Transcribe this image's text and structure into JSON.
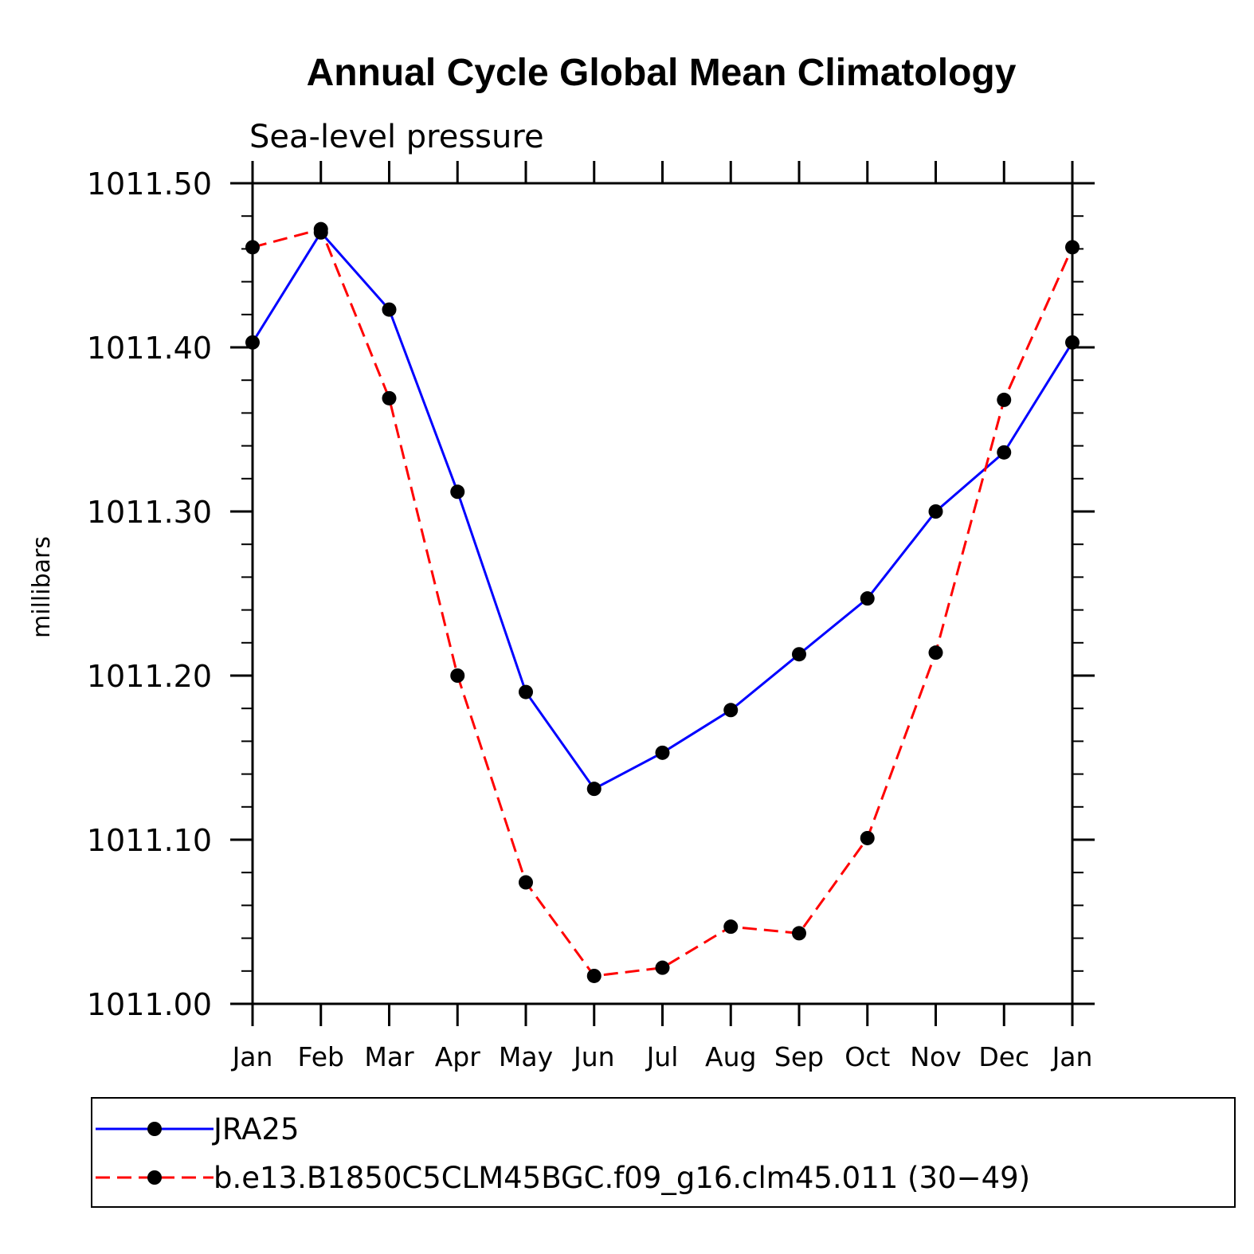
{
  "chart_data": {
    "type": "line",
    "title": "Annual Cycle Global Mean Climatology",
    "subtitle": "Sea-level pressure",
    "xlabel": "",
    "ylabel": "millibars",
    "categories": [
      "Jan",
      "Feb",
      "Mar",
      "Apr",
      "May",
      "Jun",
      "Jul",
      "Aug",
      "Sep",
      "Oct",
      "Nov",
      "Dec",
      "Jan"
    ],
    "ylim": [
      1011.0,
      1011.5
    ],
    "yticks": [
      "1011.00",
      "1011.10",
      "1011.20",
      "1011.30",
      "1011.40",
      "1011.50"
    ],
    "ytick_values": [
      1011.0,
      1011.1,
      1011.2,
      1011.3,
      1011.4,
      1011.5
    ],
    "legend_position": "bottom",
    "series": [
      {
        "name": "JRA25",
        "color": "#0000ff",
        "dash": "solid",
        "values": [
          1011.403,
          1011.47,
          1011.423,
          1011.312,
          1011.19,
          1011.131,
          1011.153,
          1011.179,
          1011.213,
          1011.247,
          1011.3,
          1011.336,
          1011.403
        ]
      },
      {
        "name": "b.e13.B1850C5CLM45BGC.f09_g16.clm45.011 (30−49)",
        "color": "#ff0000",
        "dash": "dashed",
        "values": [
          1011.461,
          1011.472,
          1011.369,
          1011.2,
          1011.074,
          1011.017,
          1011.022,
          1011.047,
          1011.043,
          1011.101,
          1011.214,
          1011.368,
          1011.461
        ]
      }
    ]
  }
}
